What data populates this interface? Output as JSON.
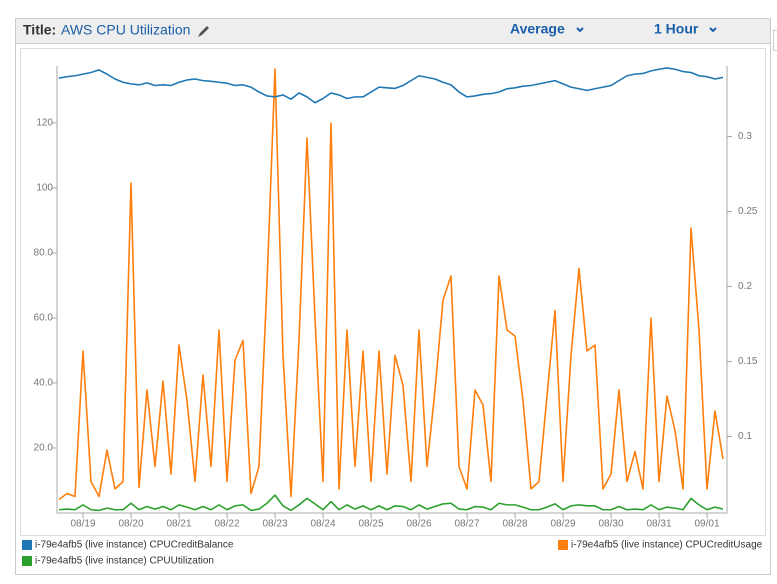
{
  "header": {
    "title_label": "Title:",
    "title": "AWS CPU Utilization",
    "statistic": "Average",
    "period": "1 Hour"
  },
  "chart_data": {
    "type": "line",
    "categories": [
      null,
      null,
      null,
      "08/19",
      null,
      null,
      null,
      null,
      null,
      "08/20",
      null,
      null,
      null,
      null,
      null,
      "08/21",
      null,
      null,
      null,
      null,
      null,
      "08/22",
      null,
      null,
      null,
      null,
      null,
      "08/23",
      null,
      null,
      null,
      null,
      null,
      "08/24",
      null,
      null,
      null,
      null,
      null,
      "08/25",
      null,
      null,
      null,
      null,
      null,
      "08/26",
      null,
      null,
      null,
      null,
      null,
      "08/27",
      null,
      null,
      null,
      null,
      null,
      "08/28",
      null,
      null,
      null,
      null,
      null,
      "08/29",
      null,
      null,
      null,
      null,
      null,
      "08/30",
      null,
      null,
      null,
      null,
      null,
      "08/31",
      null,
      null,
      null,
      null,
      null,
      "09/01",
      null,
      null
    ],
    "ylim": [
      0,
      137.5
    ],
    "yticks": [
      {
        "value": 20,
        "label": "20.0"
      },
      {
        "value": 40,
        "label": "40.0"
      },
      {
        "value": 60,
        "label": "60.0"
      },
      {
        "value": 80,
        "label": "80.0"
      },
      100,
      120
    ],
    "y2lim": [
      0.049,
      0.347
    ],
    "y2ticks": [
      0.1,
      0.15,
      0.2,
      0.25,
      0.3
    ],
    "series": [
      {
        "name": "i-79e4afb5 (live instance) CPUCreditBalance",
        "color": "#1f77b4",
        "axis": "y",
        "values": [
          133.8,
          134.2,
          134.5,
          135.0,
          135.5,
          136.3,
          135.0,
          133.5,
          132.5,
          132.0,
          131.7,
          132.3,
          131.5,
          131.7,
          131.5,
          132.5,
          133.2,
          133.5,
          133.0,
          132.8,
          132.5,
          132.2,
          131.5,
          131.7,
          131.0,
          129.5,
          128.3,
          128.0,
          128.6,
          127.3,
          129.2,
          128.0,
          126.2,
          127.5,
          129.2,
          128.6,
          127.5,
          128.0,
          128.0,
          129.5,
          131.0,
          130.8,
          130.6,
          131.5,
          133.0,
          134.5,
          134.0,
          133.5,
          132.5,
          131.7,
          129.5,
          128.0,
          128.3,
          128.8,
          129.0,
          129.5,
          130.5,
          130.8,
          131.3,
          131.5,
          132.0,
          132.5,
          133.0,
          132.0,
          131.0,
          130.5,
          130.0,
          130.5,
          131.0,
          131.5,
          133.0,
          134.5,
          135.0,
          135.2,
          136.0,
          136.5,
          136.9,
          136.5,
          135.8,
          135.5,
          134.5,
          134.2,
          133.5,
          134.0
        ]
      },
      {
        "name": "i-79e4afb5 (live instance) CPUCreditUsage",
        "color": "#ff7f0e",
        "axis": "y2",
        "values": [
          0.058,
          0.062,
          0.06,
          0.157,
          0.07,
          0.06,
          0.091,
          0.065,
          0.07,
          0.269,
          0.066,
          0.131,
          0.08,
          0.137,
          0.075,
          0.161,
          0.124,
          0.07,
          0.141,
          0.08,
          0.171,
          0.07,
          0.151,
          0.164,
          0.062,
          0.08,
          0.202,
          0.345,
          0.154,
          0.06,
          0.164,
          0.299,
          0.179,
          0.07,
          0.309,
          0.065,
          0.171,
          0.08,
          0.157,
          0.07,
          0.157,
          0.075,
          0.154,
          0.134,
          0.07,
          0.171,
          0.08,
          0.131,
          0.191,
          0.207,
          0.08,
          0.065,
          0.131,
          0.121,
          0.07,
          0.207,
          0.171,
          0.167,
          0.124,
          0.065,
          0.07,
          0.127,
          0.184,
          0.07,
          0.154,
          0.212,
          0.157,
          0.161,
          0.065,
          0.075,
          0.131,
          0.07,
          0.09,
          0.065,
          0.179,
          0.07,
          0.127,
          0.104,
          0.065,
          0.239,
          0.171,
          0.065,
          0.117,
          0.085
        ]
      },
      {
        "name": "i-79e4afb5 (live instance) CPUUtilization",
        "color": "#2ca02c",
        "axis": "y",
        "values": [
          1.0,
          1.2,
          1.0,
          2.5,
          1.0,
          0.8,
          1.5,
          1.0,
          1.0,
          3.0,
          1.0,
          2.0,
          1.2,
          2.0,
          1.0,
          2.5,
          1.8,
          1.0,
          2.0,
          1.0,
          2.5,
          1.0,
          2.2,
          2.5,
          0.8,
          1.2,
          3.0,
          5.5,
          2.2,
          0.8,
          2.5,
          4.5,
          2.8,
          1.0,
          3.5,
          1.0,
          2.5,
          1.2,
          2.2,
          1.0,
          2.2,
          1.0,
          2.2,
          2.0,
          1.0,
          2.5,
          1.2,
          2.0,
          2.8,
          3.0,
          1.2,
          1.0,
          2.0,
          1.8,
          1.0,
          3.0,
          2.5,
          2.5,
          1.8,
          1.0,
          1.0,
          1.8,
          2.8,
          1.0,
          2.2,
          2.5,
          2.2,
          2.2,
          1.0,
          1.0,
          2.0,
          1.0,
          1.2,
          1.0,
          2.5,
          1.0,
          1.8,
          1.5,
          1.0,
          4.5,
          2.5,
          1.0,
          1.8,
          1.2
        ]
      }
    ]
  }
}
